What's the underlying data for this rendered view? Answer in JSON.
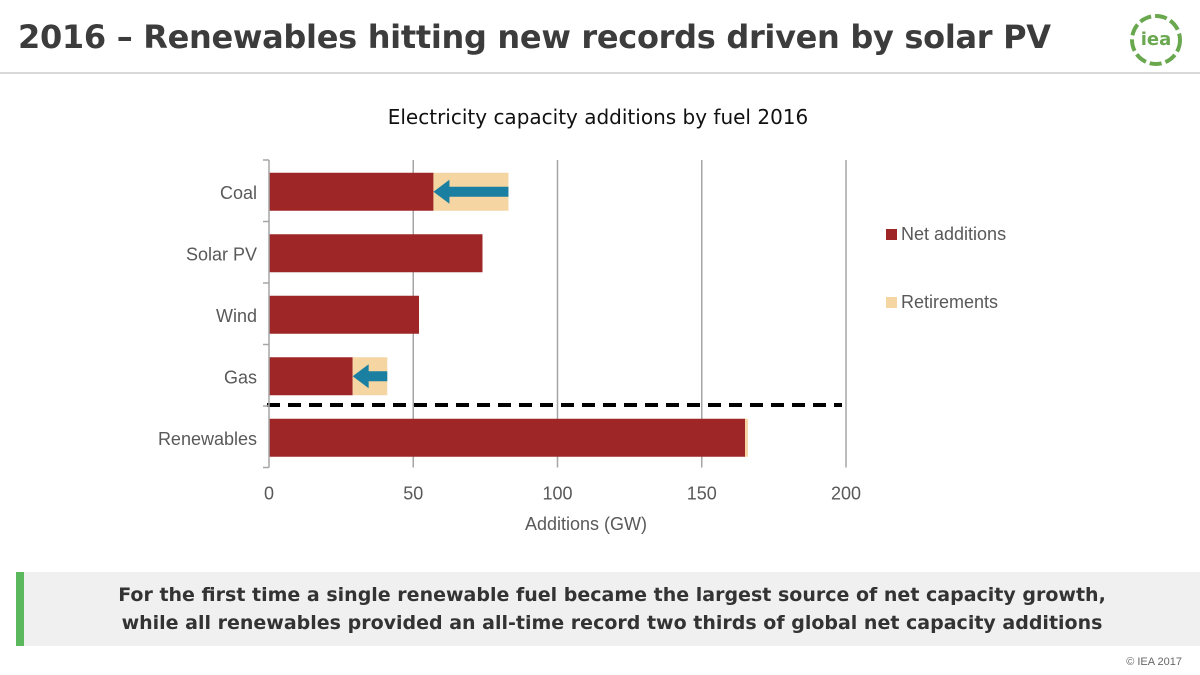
{
  "slide": {
    "title": "2016 – Renewables hitting new records driven by solar PV",
    "logo_text": "iea",
    "callout_line1": "For the first time a single renewable fuel became the largest source of net capacity growth,",
    "callout_line2": "while all renewables provided an all-time record two thirds of global net capacity additions",
    "copyright": "© IEA 2017",
    "accent_color": "#5cb85c",
    "logo_color": "#6aa84f"
  },
  "chart_data": {
    "type": "bar",
    "orientation": "horizontal",
    "stacked": true,
    "title": "Electricity capacity additions by fuel 2016",
    "xlabel": "Additions (GW)",
    "ylabel": "",
    "xlim": [
      0,
      200
    ],
    "xticks": [
      0,
      50,
      100,
      150,
      200
    ],
    "grid": "vertical",
    "legend_position": "right",
    "categories": [
      "Coal",
      "Solar PV",
      "Wind",
      "Gas",
      "Renewables"
    ],
    "series": [
      {
        "name": "Net additions",
        "color": "#9e2626",
        "values": [
          57,
          74,
          52,
          29,
          165
        ]
      },
      {
        "name": "Retirements",
        "color": "#f5d5a1",
        "values": [
          26,
          0,
          0,
          12,
          1
        ]
      }
    ],
    "arrows": [
      {
        "category": "Coal",
        "from": 83,
        "to": 57,
        "color": "#1a7fa0"
      },
      {
        "category": "Gas",
        "from": 41,
        "to": 29,
        "color": "#1a7fa0"
      }
    ],
    "separator": {
      "style": "dashed",
      "between": [
        "Gas",
        "Renewables"
      ]
    }
  }
}
